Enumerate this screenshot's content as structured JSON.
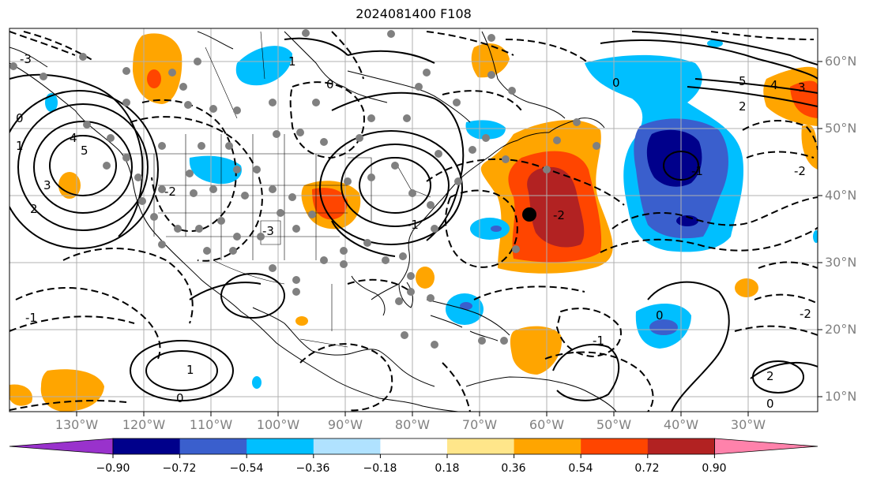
{
  "title": "2024081400 F108",
  "longitude_labels": [
    "130°W",
    "120°W",
    "110°W",
    "100°W",
    "90°W",
    "80°W",
    "70°W",
    "60°W",
    "50°W",
    "40°W",
    "30°W"
  ],
  "latitude_labels": [
    "60°N",
    "50°N",
    "40°N",
    "30°N",
    "20°N",
    "10°N"
  ],
  "colorbar": {
    "ticks": [
      "−0.90",
      "−0.72",
      "−0.54",
      "−0.36",
      "−0.18",
      "0.18",
      "0.36",
      "0.54",
      "0.72",
      "0.90"
    ],
    "colors": [
      "#9932cc",
      "#00008b",
      "#3a5fcd",
      "#00bfff",
      "#b0e2ff",
      "#ffffff",
      "#ffe68a",
      "#ffa500",
      "#ff4500",
      "#b22222",
      "#ff82ab"
    ]
  },
  "contour_labels": [
    "5",
    "4",
    "3",
    "2",
    "1",
    "0",
    "-1",
    "-2",
    "-3",
    "5",
    "4",
    "3",
    "2",
    "0",
    "-1",
    "-2",
    "-1",
    "0",
    "1",
    "2",
    "-2",
    "0",
    "-1",
    "1",
    "0",
    "-2",
    "0",
    "-3"
  ],
  "colors": {
    "positive": "#ffa500",
    "strong_positive": "#ff4500",
    "max_positive": "#b22222",
    "negative": "#00bfff",
    "strong_negative": "#3a5fcd",
    "max_negative": "#00008b",
    "marker": "#000000",
    "stations": "#808080"
  }
}
